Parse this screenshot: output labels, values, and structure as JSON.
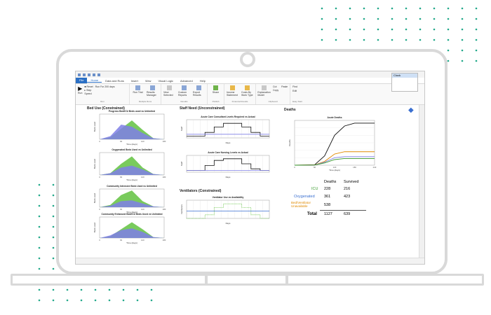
{
  "ribbon": {
    "menu_tabs": [
      "File",
      "Home",
      "Data and Runs",
      "Insert",
      "View",
      "Visual Logic",
      "Advanced",
      "Help"
    ],
    "run_labels": {
      "run": "Run",
      "reset": "Reset",
      "step": "Step",
      "speed": "Speed",
      "run_for": "Run For 200 days"
    },
    "groups": [
      {
        "label": "Run",
        "items": []
      },
      {
        "label": "Multiple Runs",
        "items": [
          "Run Trial",
          "Results Manager"
        ]
      },
      {
        "label": "Results",
        "items": [
          "View Selected",
          "Custom Reports",
          "Export Results"
        ]
      },
      {
        "label": "Publish",
        "items": [
          "Share"
        ]
      },
      {
        "label": "Financial Results",
        "items": [
          "Income Statement",
          "Costs By Work Type"
        ]
      },
      {
        "label": "Clipboard",
        "items": [
          "Explanation Model",
          "Cut",
          "Copy",
          "Paste"
        ]
      },
      {
        "label": "Easy Start",
        "items": [
          "Find",
          "Edit"
        ]
      }
    ],
    "popup": {
      "header": "Clock",
      "line1": "—",
      "line2": "—"
    }
  },
  "colors": {
    "green": "#6ac54a",
    "purple": "#7f7fe6",
    "blue": "#3a6fd0",
    "black": "#111111",
    "orange": "#e08a00",
    "darkgreen": "#3a9c2e"
  },
  "panels": {
    "bed_use": {
      "title": "Bed Use (Constrained)",
      "charts": [
        {
          "title": "Progress Bed/ICU Beds used vs Unlimited",
          "xlabel": "Time (days)",
          "ylabel": "Beds used",
          "ticks": [
            "0",
            "60",
            "120",
            "180"
          ]
        },
        {
          "title": "Oxygenated Beds Used vs Unlimited",
          "xlabel": "Time (days)",
          "ylabel": "Beds used",
          "ticks": [
            "0",
            "60",
            "120",
            "180"
          ]
        },
        {
          "title": "Community Intensive Beds Used vs Unlimited",
          "xlabel": "Time (days)",
          "ylabel": "Beds used",
          "ticks": [
            "0",
            "60",
            "120",
            "180"
          ]
        },
        {
          "title": "Community Enhanced Bed/ICU Beds Used vs Unlimited",
          "xlabel": "Time (days)",
          "ylabel": "Beds used",
          "ticks": [
            "0",
            "60",
            "120",
            "180"
          ]
        }
      ]
    },
    "staff_need": {
      "title": "Staff Need (Unconstrained)",
      "charts": [
        {
          "title": "Acute Care Consultant Levels Required vs Actual",
          "xlabel": "Days",
          "ylabel": "Staff"
        },
        {
          "title": "Acute Care Nursing Levels vs Actual",
          "xlabel": "Days",
          "ylabel": "Staff"
        }
      ]
    },
    "ventilators": {
      "title": "Ventilators (Constrained)",
      "chart": {
        "title": "Ventilator Use vs Availability",
        "xlabel": "Days",
        "ylabel": "Ventilators"
      }
    },
    "deaths": {
      "title": "Deaths",
      "chart": {
        "title": "Acute Deaths",
        "xlabel": "Time (days)",
        "ylabel": "Deaths",
        "ticks": [
          "0",
          "60",
          "120",
          "180",
          "240"
        ]
      },
      "table": {
        "headers": [
          "Deaths",
          "Survived"
        ],
        "rows": [
          {
            "label": "ICU",
            "deaths": "228",
            "survived": "216"
          },
          {
            "label": "Oxygenated",
            "deaths": "361",
            "survived": "423"
          },
          {
            "label": "Bed/Ventilator Unavailable",
            "deaths": "538",
            "survived": ""
          },
          {
            "label": "Total",
            "deaths": "1127",
            "survived": "639"
          }
        ]
      }
    }
  },
  "chart_data": [
    {
      "type": "area",
      "title": "Progress Bed/ICU Beds used vs Unlimited",
      "xlabel": "Time (days)",
      "ylabel": "Beds used",
      "x": [
        0,
        30,
        60,
        90,
        120,
        150,
        180
      ],
      "series": [
        {
          "values": [
            0,
            2,
            10,
            18,
            9,
            1,
            0
          ]
        },
        {
          "values": [
            0,
            3,
            14,
            12,
            6,
            1,
            0
          ]
        }
      ],
      "xlim": [
        0,
        180
      ]
    },
    {
      "type": "area",
      "title": "Oxygenated Beds Used vs Unlimited",
      "xlabel": "Time (days)",
      "ylabel": "Beds used",
      "x": [
        0,
        30,
        60,
        90,
        120,
        150,
        180
      ],
      "series": [
        {
          "values": [
            0,
            2,
            12,
            20,
            8,
            1,
            0
          ]
        },
        {
          "values": [
            0,
            2,
            8,
            10,
            6,
            1,
            0
          ]
        }
      ],
      "xlim": [
        0,
        180
      ]
    },
    {
      "type": "area",
      "title": "Community Intensive Beds Used vs Unlimited",
      "xlabel": "Time (days)",
      "ylabel": "Beds used",
      "x": [
        0,
        30,
        60,
        90,
        120,
        150,
        180
      ],
      "series": [
        {
          "values": [
            0,
            3,
            16,
            22,
            8,
            1,
            0
          ]
        },
        {
          "values": [
            0,
            2,
            8,
            9,
            5,
            1,
            0
          ]
        }
      ],
      "xlim": [
        0,
        180
      ]
    },
    {
      "type": "area",
      "title": "Community Enhanced Bed/ICU Beds Used vs Unlimited",
      "xlabel": "Time (days)",
      "ylabel": "Beds used",
      "x": [
        0,
        30,
        60,
        90,
        120,
        150,
        180
      ],
      "series": [
        {
          "values": [
            0,
            2,
            10,
            18,
            10,
            1,
            0
          ]
        },
        {
          "values": [
            0,
            3,
            9,
            11,
            7,
            1,
            0
          ]
        }
      ],
      "xlim": [
        0,
        180
      ]
    },
    {
      "type": "line",
      "title": "Acute Care Consultant Levels Required vs Actual",
      "xlabel": "Days",
      "ylabel": "Staff",
      "x": [
        0,
        4,
        8,
        12,
        16,
        20,
        24,
        28,
        32,
        36
      ],
      "series": [
        {
          "values": [
            1,
            1,
            3,
            6,
            8,
            8,
            6,
            3,
            1,
            1
          ]
        },
        {
          "values": [
            2,
            2,
            2,
            2,
            2,
            2,
            2,
            2,
            2,
            2
          ]
        }
      ]
    },
    {
      "type": "line",
      "title": "Acute Care Nursing Levels vs Actual",
      "xlabel": "Days",
      "ylabel": "Staff",
      "x": [
        0,
        4,
        8,
        12,
        16,
        20,
        24,
        28,
        32,
        36
      ],
      "series": [
        {
          "values": [
            1,
            1,
            4,
            7,
            8,
            8,
            5,
            2,
            1,
            1
          ]
        },
        {
          "values": [
            1,
            1,
            1,
            1,
            1,
            1,
            1,
            1,
            1,
            1
          ]
        }
      ]
    },
    {
      "type": "line",
      "title": "Ventilator Use vs Availability",
      "xlabel": "Days",
      "ylabel": "Ventilators",
      "x": [
        0,
        4,
        8,
        12,
        16,
        20,
        24,
        28,
        32,
        36
      ],
      "series": [
        {
          "values": [
            0,
            0,
            2,
            6,
            8,
            8,
            6,
            2,
            0,
            0
          ]
        },
        {
          "values": [
            4,
            4,
            4,
            4,
            4,
            4,
            4,
            4,
            4,
            4
          ]
        }
      ]
    },
    {
      "type": "line",
      "title": "Acute Deaths",
      "xlabel": "Time (days)",
      "ylabel": "Deaths",
      "x": [
        0,
        60,
        90,
        120,
        150,
        180,
        240
      ],
      "series": [
        {
          "values": [
            0,
            10,
            250,
            800,
            1050,
            1127,
            1127
          ]
        },
        {
          "values": [
            0,
            5,
            100,
            300,
            361,
            361,
            361
          ]
        },
        {
          "values": [
            0,
            4,
            80,
            200,
            228,
            228,
            228
          ]
        },
        {
          "values": [
            0,
            3,
            60,
            150,
            180,
            180,
            180
          ]
        }
      ],
      "xlim": [
        0,
        240
      ]
    }
  ]
}
